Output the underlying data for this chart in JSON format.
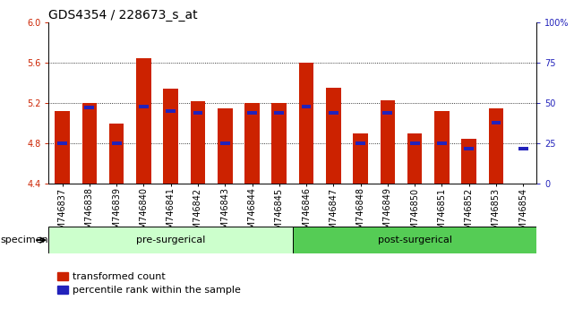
{
  "title": "GDS4354 / 228673_s_at",
  "samples": [
    "GSM746837",
    "GSM746838",
    "GSM746839",
    "GSM746840",
    "GSM746841",
    "GSM746842",
    "GSM746843",
    "GSM746844",
    "GSM746845",
    "GSM746846",
    "GSM746847",
    "GSM746848",
    "GSM746849",
    "GSM746850",
    "GSM746851",
    "GSM746852",
    "GSM746853",
    "GSM746854"
  ],
  "red_values": [
    5.12,
    5.2,
    5.0,
    5.64,
    5.34,
    5.22,
    5.15,
    5.2,
    5.2,
    5.6,
    5.35,
    4.9,
    5.23,
    4.9,
    5.12,
    4.85,
    5.15,
    4.4
  ],
  "blue_percentile": [
    25,
    47,
    25,
    48,
    45,
    44,
    25,
    44,
    44,
    48,
    44,
    25,
    44,
    25,
    25,
    22,
    38,
    22
  ],
  "pre_surgical_count": 9,
  "post_surgical_count": 9,
  "pre_label": "pre-surgerical",
  "post_label": "post-surgerical",
  "pre_color": "#ccffcc",
  "post_color": "#55cc55",
  "ylim": [
    4.4,
    6.0
  ],
  "yticks_left": [
    4.4,
    4.8,
    5.2,
    5.6,
    6.0
  ],
  "yticks_right": [
    0,
    25,
    50,
    75,
    100
  ],
  "bar_color": "#cc2200",
  "blue_color": "#2222bb",
  "bar_width": 0.55,
  "background_color": "#ffffff",
  "plot_bg": "#ffffff",
  "title_fontsize": 10,
  "tick_fontsize": 7,
  "label_fontsize": 8,
  "legend_fontsize": 8
}
